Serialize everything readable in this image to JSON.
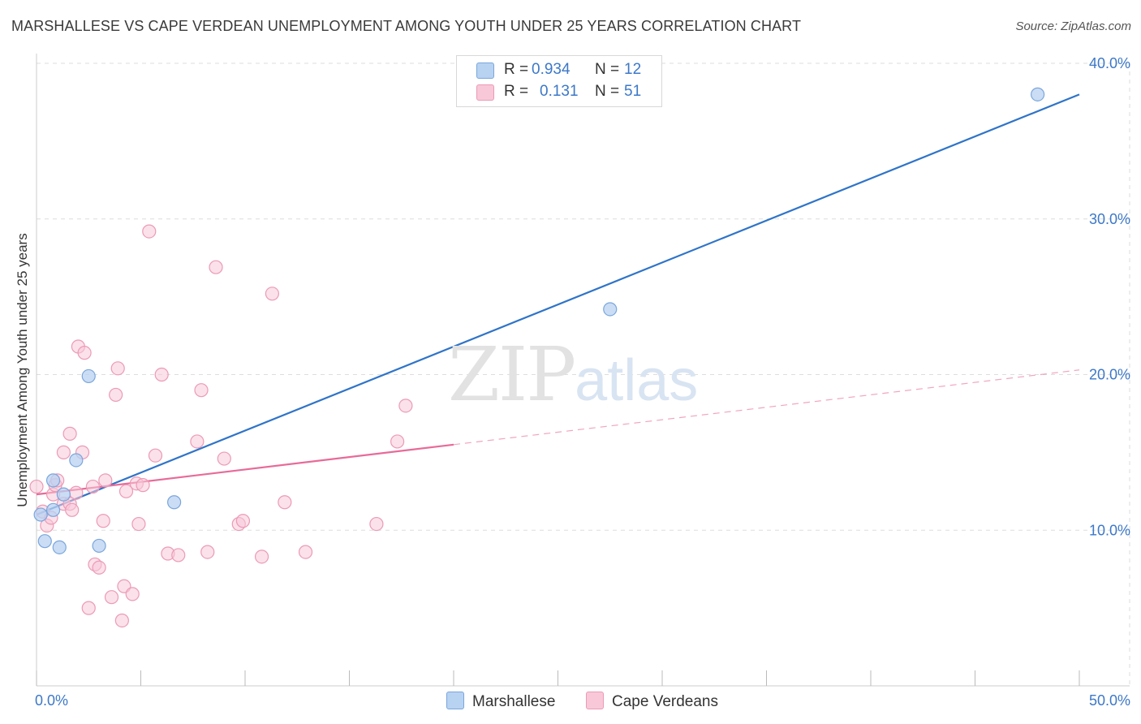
{
  "title": "MARSHALLESE VS CAPE VERDEAN UNEMPLOYMENT AMONG YOUTH UNDER 25 YEARS CORRELATION CHART",
  "source": "Source: ZipAtlas.com",
  "watermark": {
    "zip": "ZIP",
    "atlas": "atlas"
  },
  "legend": {
    "r_label": "R =",
    "n_label": "N =",
    "marshallese": {
      "r": "0.934",
      "n": "12"
    },
    "cape_verdeans": {
      "r": "0.131",
      "n": "51"
    }
  },
  "colors": {
    "blue_fill": "#b8d2f2",
    "blue_stroke": "#7aa6dc",
    "blue_line": "#2f74c8",
    "pink_fill": "#f8c8d8",
    "pink_stroke": "#ec9ab6",
    "pink_line": "#e86a98",
    "tick_label": "#3c78c8",
    "grid": "#dddddd"
  },
  "chart_data": {
    "type": "scatter",
    "title": "MARSHALLESE VS CAPE VERDEAN UNEMPLOYMENT AMONG YOUTH UNDER 25 YEARS CORRELATION CHART",
    "xlabel": "",
    "ylabel": "Unemployment Among Youth under 25 years",
    "xlim": [
      0,
      50
    ],
    "ylim": [
      0,
      40
    ],
    "x_tick_labels": [
      "0.0%",
      "50.0%"
    ],
    "y_ticks": [
      10,
      20,
      30,
      40
    ],
    "y_tick_labels": [
      "10.0%",
      "20.0%",
      "30.0%",
      "40.0%"
    ],
    "series": [
      {
        "name": "Marshallese",
        "r": 0.934,
        "n": 12,
        "points": [
          [
            0.2,
            11.0
          ],
          [
            0.4,
            9.3
          ],
          [
            0.8,
            13.2
          ],
          [
            0.8,
            11.3
          ],
          [
            1.1,
            8.9
          ],
          [
            1.3,
            12.3
          ],
          [
            1.9,
            14.5
          ],
          [
            2.5,
            19.9
          ],
          [
            3.0,
            9.0
          ],
          [
            6.6,
            11.8
          ],
          [
            27.5,
            24.2
          ],
          [
            48.0,
            38.0
          ]
        ],
        "trend": {
          "x0": 0,
          "y0": 11.0,
          "x1": 50,
          "y1": 38.0,
          "dashed_from": null
        }
      },
      {
        "name": "Cape Verdeans",
        "r": 0.131,
        "n": 51,
        "points": [
          [
            0.0,
            12.8
          ],
          [
            0.3,
            11.2
          ],
          [
            0.5,
            10.3
          ],
          [
            0.7,
            10.8
          ],
          [
            0.8,
            12.3
          ],
          [
            0.9,
            12.9
          ],
          [
            1.0,
            13.2
          ],
          [
            1.3,
            11.7
          ],
          [
            1.3,
            15.0
          ],
          [
            1.6,
            11.7
          ],
          [
            1.6,
            16.2
          ],
          [
            1.7,
            11.3
          ],
          [
            1.9,
            12.4
          ],
          [
            2.0,
            21.8
          ],
          [
            2.2,
            15.0
          ],
          [
            2.3,
            21.4
          ],
          [
            2.5,
            5.0
          ],
          [
            2.7,
            12.8
          ],
          [
            2.8,
            7.8
          ],
          [
            3.0,
            7.6
          ],
          [
            3.2,
            10.6
          ],
          [
            3.3,
            13.2
          ],
          [
            3.6,
            5.7
          ],
          [
            3.8,
            18.7
          ],
          [
            3.9,
            20.4
          ],
          [
            4.1,
            4.2
          ],
          [
            4.2,
            6.4
          ],
          [
            4.3,
            12.5
          ],
          [
            4.6,
            5.9
          ],
          [
            4.8,
            13.0
          ],
          [
            4.9,
            10.4
          ],
          [
            5.1,
            12.9
          ],
          [
            5.4,
            29.2
          ],
          [
            5.7,
            14.8
          ],
          [
            6.0,
            20.0
          ],
          [
            6.3,
            8.5
          ],
          [
            6.8,
            8.4
          ],
          [
            7.7,
            15.7
          ],
          [
            7.9,
            19.0
          ],
          [
            8.2,
            8.6
          ],
          [
            8.6,
            26.9
          ],
          [
            9.0,
            14.6
          ],
          [
            9.7,
            10.4
          ],
          [
            9.9,
            10.6
          ],
          [
            10.8,
            8.3
          ],
          [
            11.3,
            25.2
          ],
          [
            11.9,
            11.8
          ],
          [
            12.9,
            8.6
          ],
          [
            16.3,
            10.4
          ],
          [
            17.3,
            15.7
          ],
          [
            17.7,
            18.0
          ]
        ],
        "trend": {
          "x0": 0,
          "y0": 12.3,
          "x1": 50,
          "y1": 20.3,
          "dashed_from": 20
        }
      }
    ]
  }
}
